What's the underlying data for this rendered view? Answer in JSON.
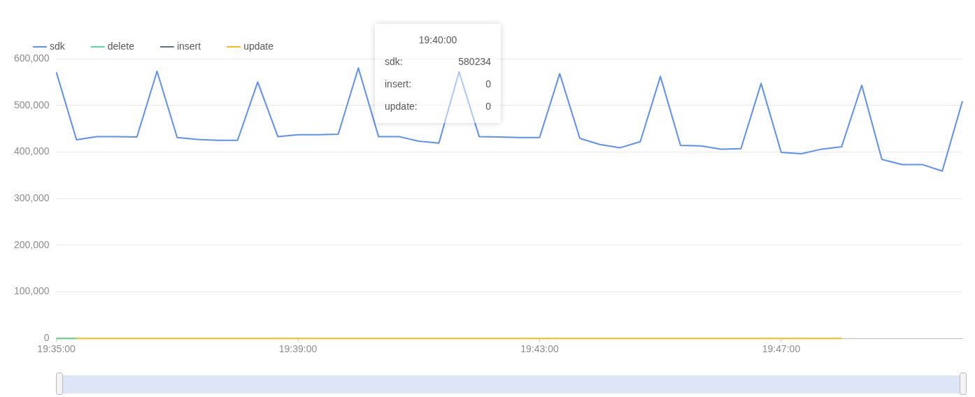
{
  "chart_data": {
    "type": "line",
    "categories": [
      "19:35:00",
      null,
      null,
      null,
      null,
      null,
      null,
      null,
      null,
      null,
      null,
      null,
      "19:39:00",
      null,
      null,
      null,
      null,
      null,
      null,
      null,
      null,
      null,
      null,
      null,
      "19:43:00",
      null,
      null,
      null,
      null,
      null,
      null,
      null,
      null,
      null,
      null,
      null,
      "19:47:00",
      null,
      null,
      null,
      null,
      null,
      null,
      null,
      null,
      null
    ],
    "series": [
      {
        "name": "sdk",
        "color": "#5b8ff9",
        "values": [
          571000,
          426000,
          433000,
          433000,
          432000,
          573000,
          431000,
          427000,
          425000,
          425000,
          550000,
          433000,
          437000,
          437000,
          438000,
          580234,
          433000,
          433000,
          423000,
          419000,
          572000,
          433000,
          432000,
          431000,
          431000,
          568000,
          429000,
          416000,
          409000,
          422000,
          562000,
          414000,
          413000,
          406000,
          407000,
          547000,
          399000,
          396000,
          406000,
          411000,
          543000,
          384000,
          373000,
          373000,
          359000,
          509000
        ]
      },
      {
        "name": "delete",
        "color": "#5ad8a6",
        "values": [
          0,
          0,
          null,
          null,
          null,
          null,
          null,
          null,
          null,
          null,
          null,
          null,
          null,
          null,
          null,
          null,
          null,
          null,
          null,
          null,
          null,
          null,
          null,
          null,
          null,
          null,
          null,
          null,
          null,
          null,
          null,
          null,
          null,
          null,
          null,
          null,
          null,
          null,
          null,
          null,
          null,
          null,
          null,
          null,
          null,
          null
        ]
      },
      {
        "name": "insert",
        "color": "#5d7092",
        "values": [
          null,
          null,
          null,
          null,
          null,
          null,
          null,
          null,
          null,
          null,
          null,
          null,
          null,
          null,
          null,
          null,
          null,
          null,
          null,
          null,
          null,
          null,
          null,
          null,
          null,
          null,
          null,
          null,
          null,
          null,
          null,
          null,
          null,
          null,
          null,
          null,
          null,
          null,
          null,
          null,
          null,
          null,
          null,
          null,
          null,
          null
        ]
      },
      {
        "name": "update",
        "color": "#f6bd16",
        "values": [
          0,
          0,
          0,
          0,
          0,
          0,
          0,
          0,
          0,
          0,
          0,
          0,
          0,
          0,
          0,
          0,
          0,
          0,
          0,
          0,
          0,
          0,
          0,
          0,
          0,
          0,
          0,
          0,
          0,
          0,
          0,
          0,
          0,
          0,
          0,
          0,
          0,
          0,
          0,
          0,
          null,
          null,
          null,
          null,
          null,
          null
        ]
      }
    ],
    "ylim": [
      0,
      600000
    ],
    "yticks": [
      0,
      {
        "value": 100000,
        "label": "100,000"
      },
      {
        "value": 200000,
        "label": "200,000"
      },
      {
        "value": 300000,
        "label": "300,000"
      },
      {
        "value": 400000,
        "label": "400,000"
      },
      {
        "value": 500000,
        "label": "500,000"
      },
      {
        "value": 600000,
        "label": "600,000"
      }
    ],
    "grid": "y",
    "legend": "top left",
    "marker": "none",
    "line_style": "solid",
    "annotations": [
      "19:40:00",
      "sdk: 580234",
      "insert: 0",
      "update: 0"
    ]
  }
}
